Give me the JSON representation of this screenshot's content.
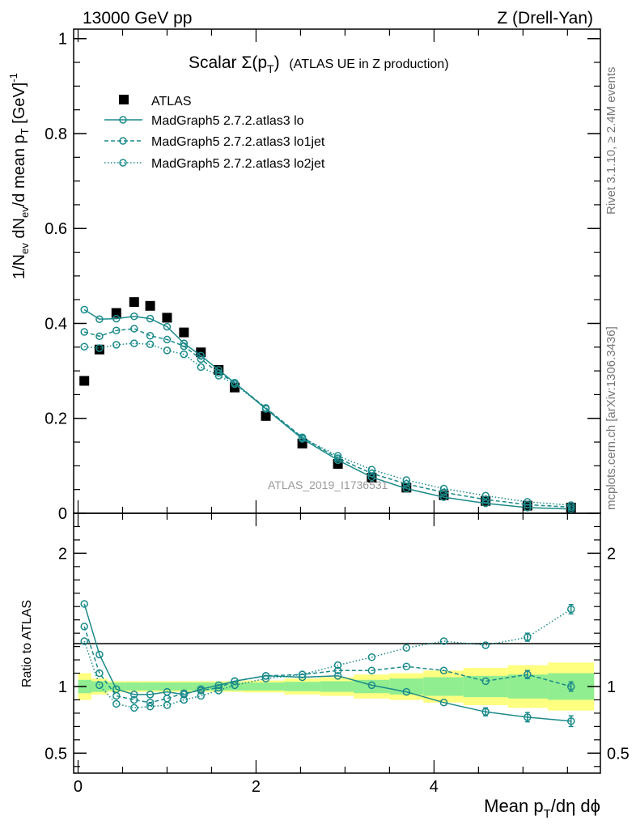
{
  "header": {
    "left": "13000 GeV pp",
    "right": "Z (Drell-Yan)"
  },
  "side_labels": {
    "rivet": "Rivet 3.1.10, ≥ 2.4M events",
    "mcplots": "mcplots.cern.ch [arXiv:1306.3436]"
  },
  "watermark": "ATLAS_2019_I1736531",
  "colors": {
    "mc": "#1b8a8a",
    "band_inner": "#90ee90",
    "band_outer": "#ffff80",
    "data": "#000000"
  },
  "chart_data": [
    {
      "type": "scatter",
      "title": "Scalar Σ(pT) (ATLAS UE in Z production)",
      "title_main": "Scalar Σ(p",
      "title_sub": "T",
      "title_close": ")",
      "title_tail": "(ATLAS UE in Z production)",
      "ylabel": "1/Nev dNev/d mean pT [GeV]-1",
      "xlim": [
        -0.05,
        5.87
      ],
      "ylim": [
        0,
        1.02
      ],
      "yticks": [
        0,
        0.2,
        0.4,
        0.6,
        0.8,
        1
      ],
      "ytick_labels": [
        "0",
        "0.2",
        "0.4",
        "0.6",
        "0.8",
        "1"
      ],
      "legend_position": "top-left",
      "legend": [
        "ATLAS",
        "MadGraph5 2.7.2.atlas3 lo",
        "MadGraph5 2.7.2.atlas3 lo1jet",
        "MadGraph5 2.7.2.atlas3 lo2jet"
      ],
      "x": [
        0.07,
        0.24,
        0.43,
        0.63,
        0.81,
        1.0,
        1.19,
        1.38,
        1.58,
        1.76,
        2.11,
        2.52,
        2.92,
        3.3,
        3.69,
        4.11,
        4.58,
        5.05,
        5.54
      ],
      "series": [
        {
          "name": "ATLAS",
          "style": "data",
          "values": [
            0.279,
            0.345,
            0.422,
            0.445,
            0.437,
            0.412,
            0.381,
            0.339,
            0.302,
            0.265,
            0.205,
            0.147,
            0.104,
            0.075,
            0.054,
            0.038,
            0.026,
            0.016,
            0.012
          ]
        },
        {
          "name": "MadGraph5 2.7.2.atlas3 lo",
          "style": "solid",
          "values": [
            0.429,
            0.409,
            0.41,
            0.415,
            0.41,
            0.393,
            0.358,
            0.332,
            0.302,
            0.275,
            0.22,
            0.157,
            0.112,
            0.076,
            0.052,
            0.034,
            0.021,
            0.012,
            0.009
          ]
        },
        {
          "name": "MadGraph5 2.7.2.atlas3 lo1jet",
          "style": "dashed",
          "values": [
            0.382,
            0.373,
            0.385,
            0.389,
            0.374,
            0.366,
            0.352,
            0.325,
            0.296,
            0.275,
            0.222,
            0.16,
            0.116,
            0.084,
            0.062,
            0.044,
            0.029,
            0.018,
            0.013
          ]
        },
        {
          "name": "MadGraph5 2.7.2.atlas3 lo2jet",
          "style": "dotted",
          "values": [
            0.351,
            0.348,
            0.355,
            0.358,
            0.356,
            0.343,
            0.335,
            0.308,
            0.29,
            0.272,
            0.221,
            0.159,
            0.121,
            0.092,
            0.07,
            0.052,
            0.037,
            0.024,
            0.017
          ]
        }
      ]
    },
    {
      "type": "line",
      "ylabel": "Ratio to ATLAS",
      "xlabel": "Mean pT/dη dϕ",
      "xlim": [
        -0.05,
        5.87
      ],
      "ylim": [
        0.35,
        2.3
      ],
      "xticks": [
        0,
        2,
        4
      ],
      "xtick_labels": [
        "0",
        "2",
        "4"
      ],
      "yticks": [
        0.5,
        1,
        2
      ],
      "ytick_labels": [
        "0.5",
        "1",
        "2"
      ],
      "x": [
        0.07,
        0.24,
        0.43,
        0.63,
        0.81,
        1.0,
        1.19,
        1.38,
        1.58,
        1.76,
        2.11,
        2.52,
        2.92,
        3.3,
        3.69,
        4.11,
        4.58,
        5.05,
        5.54
      ],
      "band_edges": [
        0,
        0.15,
        0.33,
        0.53,
        0.72,
        0.9,
        1.1,
        1.29,
        1.48,
        1.67,
        1.86,
        2.32,
        2.72,
        3.1,
        3.5,
        3.88,
        4.33,
        4.83,
        5.28,
        5.8
      ],
      "band_inner": [
        0.05,
        0.04,
        0.03,
        0.03,
        0.03,
        0.03,
        0.03,
        0.03,
        0.03,
        0.03,
        0.03,
        0.035,
        0.04,
        0.05,
        0.06,
        0.07,
        0.08,
        0.09,
        0.1
      ],
      "band_outer": [
        0.1,
        0.06,
        0.04,
        0.04,
        0.04,
        0.04,
        0.04,
        0.04,
        0.04,
        0.04,
        0.045,
        0.06,
        0.07,
        0.09,
        0.1,
        0.12,
        0.14,
        0.16,
        0.18
      ],
      "series": [
        {
          "name": "MadGraph5 2.7.2.atlas3 lo",
          "style": "solid",
          "values": [
            1.62,
            1.24,
            0.98,
            0.94,
            0.94,
            0.96,
            0.94,
            0.98,
            1.01,
            1.04,
            1.08,
            1.07,
            1.08,
            1.01,
            0.96,
            0.88,
            0.81,
            0.77,
            0.74
          ],
          "errors": [
            0.02,
            0.02,
            0.01,
            0.01,
            0.01,
            0.01,
            0.01,
            0.01,
            0.01,
            0.01,
            0.01,
            0.01,
            0.01,
            0.01,
            0.015,
            0.02,
            0.03,
            0.035,
            0.04
          ]
        },
        {
          "name": "MadGraph5 2.7.2.atlas3 lo1jet",
          "style": "dashed",
          "values": [
            1.45,
            1.1,
            0.93,
            0.9,
            0.88,
            0.91,
            0.95,
            0.97,
            0.99,
            1.04,
            1.08,
            1.09,
            1.12,
            1.12,
            1.15,
            1.12,
            1.04,
            1.09,
            1.0
          ],
          "errors": [
            0.02,
            0.02,
            0.01,
            0.01,
            0.01,
            0.01,
            0.01,
            0.01,
            0.01,
            0.01,
            0.01,
            0.01,
            0.01,
            0.015,
            0.015,
            0.02,
            0.025,
            0.03,
            0.035
          ]
        },
        {
          "name": "MadGraph5 2.7.2.atlas3 lo2jet",
          "style": "dotted",
          "values": [
            1.34,
            1.01,
            0.87,
            0.84,
            0.85,
            0.86,
            0.9,
            0.93,
            0.97,
            1.01,
            1.06,
            1.09,
            1.16,
            1.22,
            1.29,
            1.34,
            1.31,
            1.37,
            1.58
          ],
          "errors": [
            0.02,
            0.02,
            0.01,
            0.01,
            0.01,
            0.01,
            0.01,
            0.01,
            0.01,
            0.01,
            0.01,
            0.01,
            0.015,
            0.015,
            0.02,
            0.02,
            0.025,
            0.03,
            0.035
          ]
        }
      ]
    }
  ]
}
